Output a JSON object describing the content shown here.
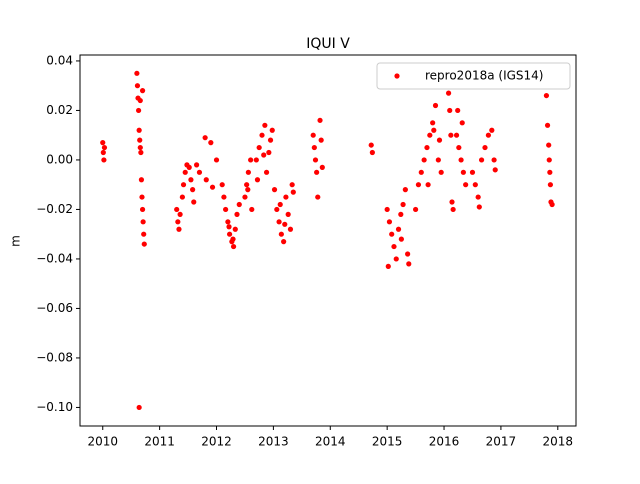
{
  "chart_data": {
    "type": "scatter",
    "title": "IQUI V",
    "y_label": "m",
    "x": [
      2010.0,
      2010.01,
      2010.02,
      2010.03,
      2010.6,
      2010.61,
      2010.62,
      2010.63,
      2010.64,
      2010.65,
      2010.66,
      2010.67,
      2010.68,
      2010.69,
      2010.7,
      2010.71,
      2010.72,
      2010.73,
      2010.64,
      2010.66,
      2010.7,
      2011.3,
      2011.32,
      2011.34,
      2011.36,
      2011.4,
      2011.42,
      2011.45,
      2011.48,
      2011.52,
      2011.55,
      2011.58,
      2011.6,
      2011.65,
      2011.7,
      2011.8,
      2011.82,
      2011.9,
      2011.93,
      2012.0,
      2012.1,
      2012.13,
      2012.16,
      2012.2,
      2012.23,
      2012.27,
      2012.3,
      2012.33,
      2012.36,
      2012.4,
      2012.22,
      2012.29,
      2012.5,
      2012.53,
      2012.56,
      2012.6,
      2012.62,
      2012.55,
      2012.7,
      2012.75,
      2012.8,
      2012.85,
      2012.88,
      2012.92,
      2012.95,
      2012.98,
      2012.72,
      2012.83,
      2013.02,
      2013.06,
      2013.1,
      2013.14,
      2013.18,
      2013.22,
      2013.26,
      2013.3,
      2013.12,
      2013.2,
      2013.33,
      2013.35,
      2013.7,
      2013.72,
      2013.74,
      2013.76,
      2013.78,
      2013.82,
      2013.84,
      2013.86,
      2014.72,
      2014.74,
      2015.0,
      2015.04,
      2015.08,
      2015.12,
      2015.16,
      2015.02,
      2015.2,
      2015.24,
      2015.28,
      2015.32,
      2015.36,
      2015.38,
      2015.25,
      2015.5,
      2015.55,
      2015.6,
      2015.65,
      2015.7,
      2015.75,
      2015.8,
      2015.85,
      2015.9,
      2015.95,
      2015.72,
      2015.82,
      2015.92,
      2016.08,
      2016.1,
      2016.12,
      2016.14,
      2016.16,
      2016.22,
      2016.26,
      2016.3,
      2016.34,
      2016.38,
      2016.24,
      2016.32,
      2016.5,
      2016.55,
      2016.6,
      2016.62,
      2016.66,
      2016.72,
      2016.78,
      2016.84,
      2016.88,
      2016.9,
      2017.8,
      2017.82,
      2017.84,
      2017.85,
      2017.86,
      2017.87,
      2017.88,
      2017.9
    ],
    "series": [
      {
        "name": "repro2018a (IGS14)",
        "color": "#ff0000",
        "values": [
          0.007,
          0.003,
          0.0,
          0.005,
          0.035,
          0.03,
          0.025,
          0.02,
          0.012,
          0.008,
          0.005,
          0.003,
          -0.008,
          -0.015,
          -0.02,
          -0.025,
          -0.03,
          -0.034,
          -0.1,
          0.024,
          0.028,
          -0.02,
          -0.025,
          -0.028,
          -0.022,
          -0.015,
          -0.01,
          -0.005,
          -0.002,
          -0.003,
          -0.008,
          -0.012,
          -0.017,
          -0.002,
          -0.005,
          0.009,
          -0.008,
          0.007,
          -0.011,
          0.0,
          -0.01,
          -0.015,
          -0.02,
          -0.025,
          -0.03,
          -0.033,
          -0.035,
          -0.028,
          -0.022,
          -0.018,
          -0.027,
          -0.032,
          -0.015,
          -0.01,
          -0.005,
          0.0,
          -0.02,
          -0.012,
          0.0,
          0.005,
          0.01,
          0.014,
          -0.005,
          0.003,
          0.008,
          0.012,
          -0.008,
          0.002,
          -0.012,
          -0.02,
          -0.025,
          -0.03,
          -0.033,
          -0.015,
          -0.022,
          -0.028,
          -0.018,
          -0.026,
          -0.01,
          -0.013,
          0.01,
          0.005,
          0.0,
          -0.005,
          -0.015,
          0.016,
          0.008,
          -0.003,
          0.006,
          0.003,
          -0.02,
          -0.025,
          -0.03,
          -0.035,
          -0.04,
          -0.043,
          -0.028,
          -0.022,
          -0.018,
          -0.012,
          -0.038,
          -0.042,
          -0.032,
          -0.02,
          -0.01,
          -0.005,
          0.0,
          0.005,
          0.01,
          0.015,
          0.022,
          0.0,
          -0.005,
          -0.01,
          0.012,
          0.008,
          0.027,
          0.02,
          0.01,
          -0.017,
          -0.02,
          0.01,
          0.005,
          0.0,
          -0.005,
          -0.01,
          0.02,
          0.015,
          -0.005,
          -0.01,
          -0.015,
          -0.019,
          0.0,
          0.005,
          0.01,
          0.012,
          0.0,
          -0.004,
          0.026,
          0.014,
          0.006,
          0.0,
          -0.005,
          -0.01,
          -0.017,
          -0.018
        ]
      }
    ],
    "xlim": [
      2009.6,
      2018.32
    ],
    "ylim": [
      -0.1075,
      0.0424
    ],
    "xticks": [
      2010,
      2011,
      2012,
      2013,
      2014,
      2015,
      2016,
      2017,
      2018
    ],
    "yticks": [
      0.04,
      0.02,
      {
        "value": 0,
        "label": "0.00"
      },
      {
        "value": -0.02,
        "label": "−0.02"
      },
      {
        "value": -0.04,
        "label": "−0.04"
      },
      {
        "value": -0.06,
        "label": "−0.06"
      },
      {
        "value": -0.08,
        "label": "−0.08"
      },
      {
        "value": -0.1,
        "label": "−0.10"
      }
    ],
    "legend": "upper right"
  }
}
